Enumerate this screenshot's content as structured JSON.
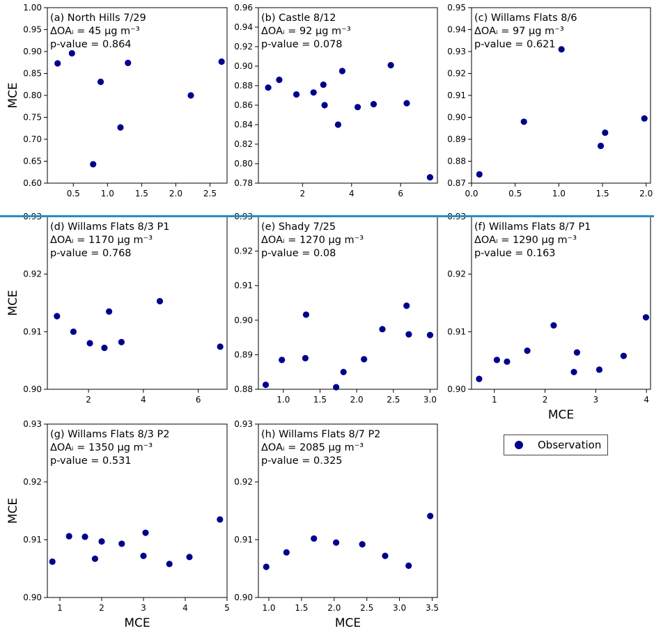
{
  "chart_data": [
    {
      "type": "scatter",
      "title_lines": [
        "(a) North Hills 7/29",
        "ΔOAᵢ = 45 µg m⁻³",
        "p-value = 0.864"
      ],
      "xlabel": "",
      "ylabel": "MCE",
      "xlim": [
        0.12,
        2.75
      ],
      "ylim": [
        0.6,
        1.0
      ],
      "xticks": [
        {
          "v": 0.5,
          "t": "0.5"
        },
        {
          "v": 1.0,
          "t": "1.0"
        },
        {
          "v": 1.5,
          "t": "1.5"
        },
        {
          "v": 2.0,
          "t": "2.0"
        },
        {
          "v": 2.5,
          "t": "2.5"
        }
      ],
      "yticks": [
        {
          "v": 0.6,
          "t": "0.60"
        },
        {
          "v": 0.65,
          "t": "0.65"
        },
        {
          "v": 0.7,
          "t": "0.70"
        },
        {
          "v": 0.75,
          "t": "0.75"
        },
        {
          "v": 0.8,
          "t": "0.80"
        },
        {
          "v": 0.85,
          "t": "0.85"
        },
        {
          "v": 0.9,
          "t": "0.90"
        },
        {
          "v": 0.95,
          "t": "0.95"
        },
        {
          "v": 1.0,
          "t": "1.00"
        }
      ],
      "points": [
        [
          0.27,
          0.873
        ],
        [
          0.48,
          0.896
        ],
        [
          0.79,
          0.643
        ],
        [
          0.9,
          0.831
        ],
        [
          1.19,
          0.727
        ],
        [
          1.3,
          0.874
        ],
        [
          2.22,
          0.8
        ],
        [
          2.67,
          0.877
        ]
      ]
    },
    {
      "type": "scatter",
      "title_lines": [
        "(b) Castle 8/12",
        "ΔOAᵢ = 92 µg m⁻³",
        "p-value = 0.078"
      ],
      "xlabel": "",
      "ylabel": "",
      "xlim": [
        0.2,
        7.5
      ],
      "ylim": [
        0.78,
        0.96
      ],
      "xticks": [
        {
          "v": 2,
          "t": "2"
        },
        {
          "v": 4,
          "t": "4"
        },
        {
          "v": 6,
          "t": "6"
        }
      ],
      "yticks": [
        {
          "v": 0.78,
          "t": "0.78"
        },
        {
          "v": 0.8,
          "t": "0.80"
        },
        {
          "v": 0.82,
          "t": "0.82"
        },
        {
          "v": 0.84,
          "t": "0.84"
        },
        {
          "v": 0.86,
          "t": "0.86"
        },
        {
          "v": 0.88,
          "t": "0.88"
        },
        {
          "v": 0.9,
          "t": "0.90"
        },
        {
          "v": 0.92,
          "t": "0.92"
        },
        {
          "v": 0.94,
          "t": "0.94"
        },
        {
          "v": 0.96,
          "t": "0.96"
        }
      ],
      "points": [
        [
          0.6,
          0.878
        ],
        [
          1.05,
          0.886
        ],
        [
          1.75,
          0.871
        ],
        [
          2.45,
          0.873
        ],
        [
          2.85,
          0.881
        ],
        [
          2.9,
          0.86
        ],
        [
          3.45,
          0.84
        ],
        [
          3.62,
          0.895
        ],
        [
          4.25,
          0.858
        ],
        [
          4.9,
          0.861
        ],
        [
          5.6,
          0.901
        ],
        [
          6.25,
          0.862
        ],
        [
          7.2,
          0.786
        ]
      ]
    },
    {
      "type": "scatter",
      "title_lines": [
        "(c) Willams Flats 8/6",
        "ΔOAᵢ = 97 µg m⁻³",
        "p-value = 0.621"
      ],
      "xlabel": "",
      "ylabel": "",
      "xlim": [
        0.0,
        2.05
      ],
      "ylim": [
        0.87,
        0.95
      ],
      "xticks": [
        {
          "v": 0.0,
          "t": "0.0"
        },
        {
          "v": 0.5,
          "t": "0.5"
        },
        {
          "v": 1.0,
          "t": "1.0"
        },
        {
          "v": 1.5,
          "t": "1.5"
        },
        {
          "v": 2.0,
          "t": "2.0"
        }
      ],
      "yticks": [
        {
          "v": 0.87,
          "t": "0.87"
        },
        {
          "v": 0.88,
          "t": "0.88"
        },
        {
          "v": 0.89,
          "t": "0.89"
        },
        {
          "v": 0.9,
          "t": "0.90"
        },
        {
          "v": 0.91,
          "t": "0.91"
        },
        {
          "v": 0.92,
          "t": "0.92"
        },
        {
          "v": 0.93,
          "t": "0.93"
        },
        {
          "v": 0.94,
          "t": "0.94"
        },
        {
          "v": 0.95,
          "t": "0.95"
        }
      ],
      "points": [
        [
          0.09,
          0.874
        ],
        [
          0.6,
          0.898
        ],
        [
          1.03,
          0.931
        ],
        [
          1.48,
          0.887
        ],
        [
          1.53,
          0.893
        ],
        [
          1.98,
          0.8995
        ]
      ]
    },
    {
      "type": "scatter",
      "title_lines": [
        "(d) Willams Flats 8/3 P1",
        "ΔOAᵢ = 1170 µg m⁻³",
        "p-value = 0.768"
      ],
      "xlabel": "",
      "ylabel": "MCE",
      "xlim": [
        0.5,
        7.05
      ],
      "ylim": [
        0.9,
        0.93
      ],
      "xticks": [
        {
          "v": 2,
          "t": "2"
        },
        {
          "v": 4,
          "t": "4"
        },
        {
          "v": 6,
          "t": "6"
        }
      ],
      "yticks": [
        {
          "v": 0.9,
          "t": "0.90"
        },
        {
          "v": 0.91,
          "t": "0.91"
        },
        {
          "v": 0.92,
          "t": "0.92"
        },
        {
          "v": 0.93,
          "t": "0.93"
        }
      ],
      "points": [
        [
          0.85,
          0.9127
        ],
        [
          1.45,
          0.91
        ],
        [
          2.05,
          0.908
        ],
        [
          2.58,
          0.9072
        ],
        [
          2.75,
          0.9135
        ],
        [
          3.2,
          0.9082
        ],
        [
          4.6,
          0.9153
        ],
        [
          6.8,
          0.9074
        ]
      ]
    },
    {
      "type": "scatter",
      "title_lines": [
        "(e) Shady 7/25",
        "ΔOAᵢ = 1270 µg m⁻³",
        "p-value = 0.08"
      ],
      "xlabel": "",
      "ylabel": "",
      "xlim": [
        0.66,
        3.1
      ],
      "ylim": [
        0.88,
        0.93
      ],
      "xticks": [
        {
          "v": 1.0,
          "t": "1.0"
        },
        {
          "v": 1.5,
          "t": "1.5"
        },
        {
          "v": 2.0,
          "t": "2.0"
        },
        {
          "v": 2.5,
          "t": "2.5"
        },
        {
          "v": 3.0,
          "t": "3.0"
        }
      ],
      "yticks": [
        {
          "v": 0.88,
          "t": "0.88"
        },
        {
          "v": 0.89,
          "t": "0.89"
        },
        {
          "v": 0.9,
          "t": "0.90"
        },
        {
          "v": 0.91,
          "t": "0.91"
        },
        {
          "v": 0.92,
          "t": "0.92"
        },
        {
          "v": 0.93,
          "t": "0.93"
        }
      ],
      "points": [
        [
          0.76,
          0.8813
        ],
        [
          0.98,
          0.8885
        ],
        [
          1.3,
          0.889
        ],
        [
          1.31,
          0.9016
        ],
        [
          1.72,
          0.8806
        ],
        [
          1.82,
          0.885
        ],
        [
          2.1,
          0.8887
        ],
        [
          2.35,
          0.8974
        ],
        [
          2.68,
          0.9042
        ],
        [
          2.71,
          0.8959
        ],
        [
          3.0,
          0.8957
        ]
      ]
    },
    {
      "type": "scatter",
      "title_lines": [
        "(f) Willams Flats 8/7 P1",
        "ΔOAᵢ = 1290 µg m⁻³",
        "p-value = 0.163"
      ],
      "xlabel": "MCE",
      "ylabel": "",
      "xlim": [
        0.55,
        4.08
      ],
      "ylim": [
        0.9,
        0.93
      ],
      "xticks": [
        {
          "v": 1,
          "t": "1"
        },
        {
          "v": 2,
          "t": "2"
        },
        {
          "v": 3,
          "t": "3"
        },
        {
          "v": 4,
          "t": "4"
        }
      ],
      "yticks": [
        {
          "v": 0.9,
          "t": "0.90"
        },
        {
          "v": 0.91,
          "t": "0.91"
        },
        {
          "v": 0.92,
          "t": "0.92"
        },
        {
          "v": 0.93,
          "t": "0.93"
        }
      ],
      "points": [
        [
          0.7,
          0.9018
        ],
        [
          1.05,
          0.9051
        ],
        [
          1.25,
          0.9048
        ],
        [
          1.65,
          0.9067
        ],
        [
          2.17,
          0.9111
        ],
        [
          2.57,
          0.903
        ],
        [
          2.63,
          0.9064
        ],
        [
          3.07,
          0.9034
        ],
        [
          3.55,
          0.9058
        ],
        [
          3.99,
          0.9125
        ]
      ]
    },
    {
      "type": "scatter",
      "title_lines": [
        "(g) Willams Flats 8/3 P2",
        "ΔOAᵢ = 1350 µg m⁻³",
        "p-value = 0.531"
      ],
      "xlabel": "MCE",
      "ylabel": "MCE",
      "xlim": [
        0.7,
        5.0
      ],
      "ylim": [
        0.9,
        0.93
      ],
      "xticks": [
        {
          "v": 1,
          "t": "1"
        },
        {
          "v": 2,
          "t": "2"
        },
        {
          "v": 3,
          "t": "3"
        },
        {
          "v": 4,
          "t": "4"
        },
        {
          "v": 5,
          "t": "5"
        }
      ],
      "yticks": [
        {
          "v": 0.9,
          "t": "0.90"
        },
        {
          "v": 0.91,
          "t": "0.91"
        },
        {
          "v": 0.92,
          "t": "0.92"
        },
        {
          "v": 0.93,
          "t": "0.93"
        }
      ],
      "points": [
        [
          0.82,
          0.9062
        ],
        [
          1.22,
          0.9106
        ],
        [
          1.6,
          0.9105
        ],
        [
          1.84,
          0.9067
        ],
        [
          2.0,
          0.9097
        ],
        [
          2.48,
          0.9093
        ],
        [
          3.0,
          0.9072
        ],
        [
          3.05,
          0.9112
        ],
        [
          3.62,
          0.9058
        ],
        [
          4.1,
          0.907
        ],
        [
          4.83,
          0.9135
        ]
      ]
    },
    {
      "type": "scatter",
      "title_lines": [
        "(h) Willams Flats 8/7 P2",
        "ΔOAᵢ = 2085 µg m⁻³",
        "p-value = 0.325"
      ],
      "xlabel": "MCE",
      "ylabel": "",
      "xlim": [
        0.84,
        3.58
      ],
      "ylim": [
        0.9,
        0.93
      ],
      "xticks": [
        {
          "v": 1.0,
          "t": "1.0"
        },
        {
          "v": 1.5,
          "t": "1.5"
        },
        {
          "v": 2.0,
          "t": "2.0"
        },
        {
          "v": 2.5,
          "t": "2.5"
        },
        {
          "v": 3.0,
          "t": "3.0"
        },
        {
          "v": 3.5,
          "t": "3.5"
        }
      ],
      "yticks": [
        {
          "v": 0.9,
          "t": "0.90"
        },
        {
          "v": 0.91,
          "t": "0.91"
        },
        {
          "v": 0.92,
          "t": "0.92"
        },
        {
          "v": 0.93,
          "t": "0.93"
        }
      ],
      "points": [
        [
          0.96,
          0.9053
        ],
        [
          1.27,
          0.9078
        ],
        [
          1.69,
          0.9102
        ],
        [
          2.03,
          0.9095
        ],
        [
          2.43,
          0.9092
        ],
        [
          2.78,
          0.9072
        ],
        [
          3.14,
          0.9055
        ],
        [
          3.47,
          0.9141
        ]
      ]
    }
  ],
  "legend": {
    "label": "Observation"
  },
  "colors": {
    "marker": "#00008b",
    "separator": "#2a8cc4"
  }
}
